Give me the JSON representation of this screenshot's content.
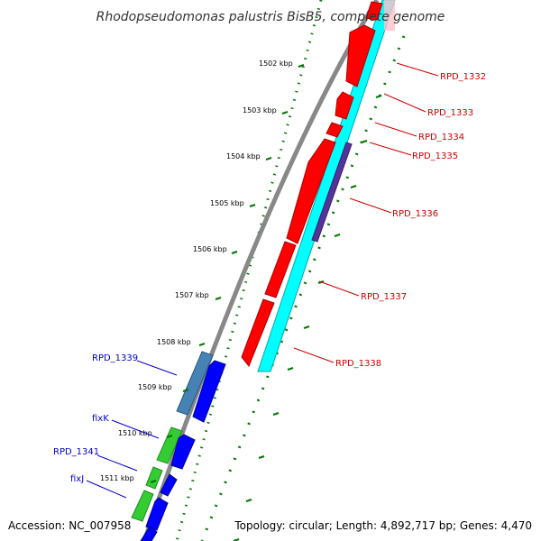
{
  "title": "Rhodopseudomonas palustris BisB5, complete genome",
  "footer": {
    "accession": "Accession: NC_007958",
    "topology": "Topology: circular; Length: 4,892,717 bp; Genes: 4,470"
  },
  "colors": {
    "background": "#ffffff",
    "backbone": "#888888",
    "forward_gene": "#ff0000",
    "reverse_gene": "#0000ff",
    "cds_track": "#00ffff",
    "rna_gene": "#4682b4",
    "green_gene": "#33cc33",
    "purple_feature": "#553399",
    "tick_mark": "#007700",
    "label_red": "#cc0000",
    "label_blue": "#0000cc"
  },
  "ticks": [
    {
      "label": "1502 kbp"
    },
    {
      "label": "1503 kbp"
    },
    {
      "label": "1504 kbp"
    },
    {
      "label": "1505 kbp"
    },
    {
      "label": "1506 kbp"
    },
    {
      "label": "1507 kbp"
    },
    {
      "label": "1508 kbp"
    },
    {
      "label": "1509 kbp"
    },
    {
      "label": "1510 kbp"
    },
    {
      "label": "1511 kbp"
    }
  ],
  "gene_labels": {
    "right": [
      {
        "name": "RPD_1332"
      },
      {
        "name": "RPD_1333"
      },
      {
        "name": "RPD_1334"
      },
      {
        "name": "RPD_1335"
      },
      {
        "name": "RPD_1336"
      },
      {
        "name": "RPD_1337"
      },
      {
        "name": "RPD_1338"
      }
    ],
    "left": [
      {
        "name": "RPD_1339"
      },
      {
        "name": "fixK"
      },
      {
        "name": "RPD_1341"
      },
      {
        "name": "fixJ"
      }
    ]
  }
}
